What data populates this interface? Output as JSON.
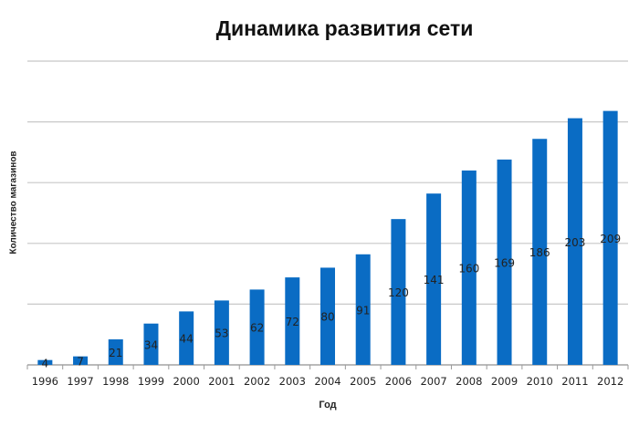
{
  "chart_data": {
    "type": "bar",
    "title": "Динамика развития сети",
    "xlabel": "Год",
    "ylabel": "Количество магазинов",
    "categories": [
      "1996",
      "1997",
      "1998",
      "1999",
      "2000",
      "2001",
      "2002",
      "2003",
      "2004",
      "2005",
      "2006",
      "2007",
      "2008",
      "2009",
      "2010",
      "2011",
      "2012"
    ],
    "values": [
      4,
      7,
      21,
      34,
      44,
      53,
      62,
      72,
      80,
      91,
      120,
      141,
      160,
      169,
      186,
      203,
      209
    ],
    "ylim": [
      0,
      250
    ],
    "grid": true,
    "legend": "none",
    "bar_color": "#0a6cc4",
    "grid_color": "#c8c8c8"
  }
}
